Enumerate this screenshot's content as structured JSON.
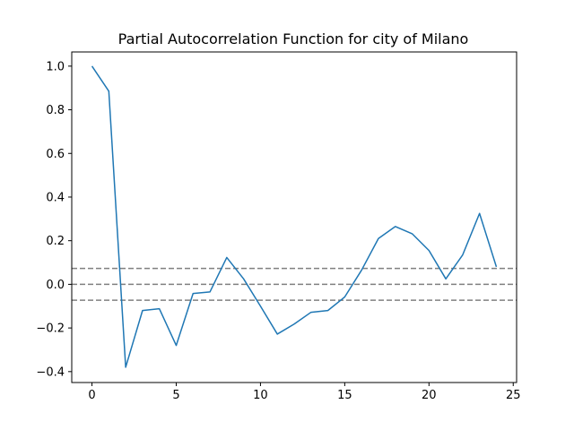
{
  "chart_data": {
    "type": "line",
    "title": "Partial Autocorrelation Function for city of Milano",
    "xlabel": "",
    "ylabel": "",
    "xlim": [
      -1.2,
      25.2
    ],
    "ylim": [
      -0.45,
      1.065
    ],
    "x_ticks": [
      0,
      5,
      10,
      15,
      20,
      25
    ],
    "x_tick_labels": [
      "0",
      "5",
      "10",
      "15",
      "20",
      "25"
    ],
    "y_ticks": [
      -0.4,
      -0.2,
      0.0,
      0.2,
      0.4,
      0.6,
      0.8,
      1.0
    ],
    "y_tick_labels": [
      "−0.4",
      "−0.2",
      "0.0",
      "0.2",
      "0.4",
      "0.6",
      "0.8",
      "1.0"
    ],
    "grid": false,
    "series": [
      {
        "color": "#1f77b4",
        "x": [
          0,
          1,
          2,
          3,
          4,
          5,
          6,
          7,
          8,
          9,
          10,
          11,
          12,
          13,
          14,
          15,
          16,
          17,
          18,
          19,
          20,
          21,
          22,
          23,
          24
        ],
        "values": [
          1.0,
          0.885,
          -0.38,
          -0.12,
          -0.112,
          -0.28,
          -0.042,
          -0.035,
          0.123,
          0.025,
          -0.1,
          -0.228,
          -0.182,
          -0.128,
          -0.12,
          -0.058,
          0.065,
          0.21,
          0.265,
          0.232,
          0.155,
          0.025,
          0.135,
          0.325,
          0.08
        ]
      }
    ],
    "reference_lines": [
      {
        "y": 0.073,
        "color": "#808080",
        "style": "dashed"
      },
      {
        "y": 0.0,
        "color": "#808080",
        "style": "dashed"
      },
      {
        "y": -0.073,
        "color": "#808080",
        "style": "dashed"
      }
    ]
  }
}
